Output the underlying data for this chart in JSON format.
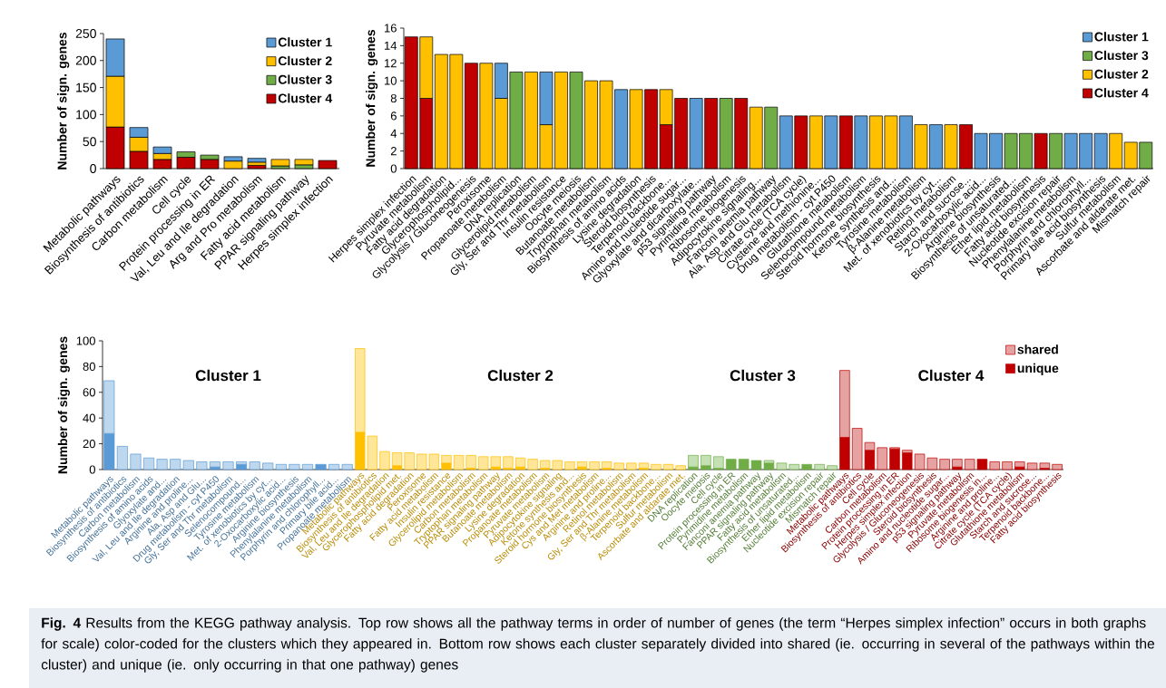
{
  "chart_data": [
    {
      "type": "bar",
      "stacked": true,
      "ylabel": "Number of sign. genes",
      "legend": "top right",
      "categories": [
        "Metabolic pathways",
        "Biosynthesis of antibiotics",
        "Carbon metabolism",
        "Cell cycle",
        "Protein processing in ER",
        "Val, Leu and Ile degradation",
        "Arg and Pro metabolism",
        "Fatty acid metabolism",
        "PPAR signaling pathway",
        "Herpes simplex infection"
      ],
      "ylim": [
        0,
        250
      ],
      "yticks": [
        0,
        50,
        100,
        150,
        200,
        250
      ],
      "series": [
        {
          "name": "Cluster 4",
          "color": "#c00000",
          "values": [
            77,
            32,
            17,
            21,
            17,
            null,
            6,
            null,
            null,
            15
          ]
        },
        {
          "name": "Cluster 3",
          "color": "#70ad47",
          "values": [
            null,
            null,
            null,
            10,
            8,
            null,
            null,
            5,
            7,
            null
          ]
        },
        {
          "name": "Cluster 2",
          "color": "#ffc000",
          "values": [
            94,
            26,
            11,
            null,
            null,
            14,
            6,
            12,
            10,
            null
          ]
        },
        {
          "name": "Cluster 1",
          "color": "#5b9bd5",
          "values": [
            69,
            18,
            12,
            null,
            null,
            8,
            7,
            null,
            null,
            null
          ]
        }
      ]
    },
    {
      "type": "bar",
      "stacked": true,
      "ylabel": "Number of sign. genes",
      "legend": "top right",
      "categories": [
        "Herpes simplex infection",
        "Pyruvate metabolism",
        "Fatty acid degradation",
        "Glycerophospholipid...",
        "Glycolysis / Gluconeogenesis",
        "Peroxisome",
        "Propanoate metabolism",
        "DNA replication",
        "Glycerolipid metabolism",
        "Gly, Ser and Thr metabolism",
        "Insulin resistance",
        "Oocyte meiosis",
        "Butanoate metabolism",
        "Tryptophan metabolism",
        "Biosynthesis of amino acids",
        "Lysine degradation",
        "Steroid biosynthesis",
        "Terpenoid backbone...",
        "Amino and nucleotide sugar...",
        "Glyoxylate and dicarboxylate...",
        "p53 signaling pathway",
        "Pyrimidine metabolism",
        "Ribosome biogenesis",
        "Adipocytokine signaling...",
        "Fanconi anemia pathway",
        "Ala, Asp and Glu metabolism",
        "Citrate cycle (TCA cycle)",
        "Cysteine and methionine...",
        "Drug metabolism - cyt P450",
        "Glutathione metabolism",
        "Selenocompound metabolism",
        "Steroid hormone biosynthesis",
        "Ketone synthesis and...",
        "Tyrosine metabolism",
        "β-Alanine metabolism",
        "Met. of xenobiotics by cyt...",
        "Retinol metabolism",
        "Starch and sucrose...",
        "2-Oxocarboxylic acid...",
        "Arginine biosynthesis",
        "Biosynthesis of unsaturated...",
        "Ether lipid metabolism",
        "Fatty acid biosynthesis",
        "Nucleotide excision repair",
        "Phenylalanine metabolism",
        "Porphyrin and chlorophyll...",
        "Primary bile acid biosynthesis",
        "Sulfur metabolism",
        "Ascorbate and aldarate met.",
        "Mismatch repair"
      ],
      "ylim": [
        0,
        16
      ],
      "yticks": [
        0,
        2,
        4,
        6,
        8,
        10,
        12,
        14,
        16
      ],
      "series": [
        {
          "name": "Cluster 4",
          "color": "#c00000",
          "values": [
            15,
            8,
            null,
            null,
            12,
            null,
            null,
            null,
            null,
            null,
            null,
            null,
            null,
            null,
            null,
            null,
            9,
            5,
            8,
            null,
            8,
            null,
            8,
            null,
            null,
            null,
            6,
            null,
            null,
            6,
            null,
            null,
            null,
            null,
            null,
            null,
            null,
            5,
            null,
            null,
            null,
            null,
            4,
            null,
            null,
            null,
            null,
            null,
            null,
            null
          ]
        },
        {
          "name": "Cluster 2",
          "color": "#ffc000",
          "values": [
            null,
            7,
            13,
            13,
            null,
            12,
            8,
            null,
            11,
            5,
            11,
            null,
            10,
            10,
            null,
            9,
            null,
            4,
            null,
            null,
            null,
            null,
            null,
            7,
            null,
            null,
            null,
            6,
            null,
            null,
            null,
            6,
            6,
            null,
            5,
            null,
            5,
            null,
            null,
            null,
            null,
            null,
            null,
            null,
            null,
            null,
            null,
            4,
            3,
            null
          ]
        },
        {
          "name": "Cluster 3",
          "color": "#70ad47",
          "values": [
            null,
            null,
            null,
            null,
            null,
            null,
            null,
            11,
            null,
            null,
            null,
            11,
            null,
            null,
            null,
            null,
            null,
            null,
            null,
            null,
            null,
            8,
            null,
            null,
            7,
            null,
            null,
            null,
            null,
            null,
            null,
            null,
            null,
            null,
            null,
            null,
            null,
            null,
            null,
            null,
            4,
            4,
            null,
            4,
            null,
            null,
            null,
            null,
            null,
            3
          ]
        },
        {
          "name": "Cluster 1",
          "color": "#5b9bd5",
          "values": [
            null,
            null,
            null,
            null,
            null,
            null,
            4,
            null,
            null,
            6,
            null,
            null,
            null,
            null,
            9,
            null,
            null,
            null,
            null,
            8,
            null,
            null,
            null,
            null,
            null,
            6,
            null,
            null,
            6,
            null,
            6,
            null,
            null,
            6,
            null,
            5,
            null,
            null,
            4,
            4,
            null,
            null,
            null,
            null,
            4,
            4,
            4,
            null,
            null,
            null
          ]
        }
      ]
    },
    {
      "type": "bar",
      "stacked": true,
      "title": "Cluster 1",
      "ylabel": "Number of sign. genes",
      "categories": [
        "Metabolic pathways",
        "Biosynthesis of antibiotics",
        "Carbon metabolism",
        "Biosynthesis of amino acids",
        "Glyoxylate and...",
        "Val, Leu and Ile degradation",
        "Arginine and proline...",
        "Ala, Asp and Glu...",
        "Drug metabolism - cyt P450",
        "Gly, Ser and Thr metabolism",
        "Selenocompound...",
        "Tyrosine metabolism",
        "Met. of xenobiotics by cyt...",
        "2-Oxocarboxylic acid...",
        "Arginine biosynthesis",
        "Phenylalanine metabolism",
        "Porphyrin and chlorophyll...",
        "Primary bile acid...",
        "Propanoate metabolism"
      ],
      "ylim": [
        0,
        100
      ],
      "yticks": [
        0,
        20,
        40,
        60,
        80,
        100
      ],
      "series": [
        {
          "color": "#5b9bd5",
          "values": [
            28,
            null,
            null,
            null,
            null,
            null,
            null,
            null,
            2,
            null,
            4,
            null,
            null,
            null,
            null,
            null,
            4,
            null,
            null
          ]
        },
        {
          "color": "#bdd7ee",
          "values": [
            41,
            18,
            12,
            9,
            8,
            8,
            7,
            6,
            4,
            6,
            2,
            6,
            5,
            4,
            4,
            4,
            null,
            4,
            4
          ]
        }
      ]
    },
    {
      "type": "bar",
      "stacked": true,
      "title": "Cluster 2",
      "tick_labels": "x",
      "categories": [
        "Metabolic pathways",
        "Biosynthesis of antibiotics",
        "Val, Leu and Ile degradation",
        "Glycerophospholipid met.",
        "Fatty acid degradation",
        "Peroxisome",
        "Fatty acid metabolism",
        "Insulin resistance",
        "Glycerolipid metabolism",
        "Carbon metabolism",
        "Tryptophan metabolism",
        "PPAR signaling pathway",
        "Butanoate metabolism",
        "Lysine degradation",
        "Propanoate metabolism",
        "Pyruvate metabolism",
        "Adipocytokine signaling",
        "Ketone synthesis and...",
        "Steroid hormone biosynthesis",
        "Cys and Met metabolism",
        "Arginine and proline...",
        "Retinol metabolism",
        "Gly, Ser and Thr metabolism",
        "β-Alanine metabolism",
        "Terpenoid backbone...",
        "Sulfur metabolism",
        "Ascorbate and aldarate met."
      ],
      "ylim": [
        0,
        100
      ],
      "series": [
        {
          "color": "#ffc000",
          "values": [
            29,
            null,
            null,
            3,
            null,
            null,
            null,
            5,
            null,
            1,
            null,
            2,
            1,
            2,
            null,
            1,
            null,
            null,
            2,
            null,
            1,
            null,
            null,
            1,
            null,
            null,
            null
          ]
        },
        {
          "color": "#ffe699",
          "values": [
            65,
            26,
            14,
            10,
            13,
            12,
            12,
            6,
            11,
            10,
            10,
            8,
            9,
            7,
            8,
            6,
            7,
            6,
            4,
            6,
            5,
            5,
            5,
            4,
            4,
            4,
            3
          ]
        }
      ]
    },
    {
      "type": "bar",
      "stacked": true,
      "title": "Cluster 3",
      "tick_labels": "x",
      "categories": [
        "DNA replication",
        "Oocyte meiosis",
        "Cell cycle",
        "Protein processing in ER",
        "Pyrimidine metabolism",
        "Fanconi anemia pathway",
        "PPAR signaling pathway",
        "Fatty acid metabolism",
        "Biosynthesis of unsaturated...",
        "Ether lipid metabolism",
        "Nucleotide excision repair",
        "Mismatch repair"
      ],
      "ylim": [
        0,
        100
      ],
      "series": [
        {
          "color": "#70ad47",
          "values": [
            2,
            3,
            1,
            8,
            8,
            7,
            5,
            null,
            null,
            4,
            null,
            null
          ]
        },
        {
          "color": "#c5e0b4",
          "values": [
            9,
            8,
            9,
            null,
            null,
            null,
            2,
            5,
            4,
            null,
            4,
            3
          ]
        }
      ]
    },
    {
      "type": "bar",
      "stacked": true,
      "title": "Cluster 4",
      "tick_labels": "x",
      "legend": "top right",
      "categories": [
        "Metabolic pathways",
        "Biosynthesis of antibiotics",
        "Cell cycle",
        "Carbon metabolism",
        "Protein processing in ER",
        "Herpes simplex infection",
        "Glycolysis / Gluconeogenesis",
        "Steroid biosynthesis",
        "Amino and nucleotide sugar...",
        "p53 signaling pathway",
        "Pyruvate metabolism",
        "Ribosome biogenesis in...",
        "Arginine and proline...",
        "Citrate cycle (TCA cycle)",
        "Glutathione metabolism",
        "Starch and sucrose...",
        "Terpenoid backbone...",
        "Fatty acid biosynthesis"
      ],
      "ylim": [
        0,
        100
      ],
      "series": [
        {
          "name": "unique",
          "color": "#c00000",
          "values": [
            25,
            null,
            15,
            null,
            16,
            13,
            null,
            null,
            null,
            2,
            null,
            8,
            null,
            null,
            2,
            null,
            1,
            null
          ]
        },
        {
          "name": "shared",
          "color": "#e6a1a1",
          "values": [
            52,
            32,
            6,
            17,
            1,
            2,
            12,
            9,
            8,
            6,
            8,
            null,
            6,
            6,
            4,
            5,
            4,
            4
          ]
        }
      ],
      "annotations": [
        "**Fig. 4** Results from the KEGG pathway analysis. Top row shows all the pathway terms in order of number of genes (the term “Herpes simplex infection” occurs in both graphs for scale) color-coded for the clusters which they appeared in. Bottom row shows each cluster separately divided into shared (ie. occurring in several of the pathways within the cluster) and unique (ie. only occurring in that one pathway) genes"
      ]
    }
  ]
}
